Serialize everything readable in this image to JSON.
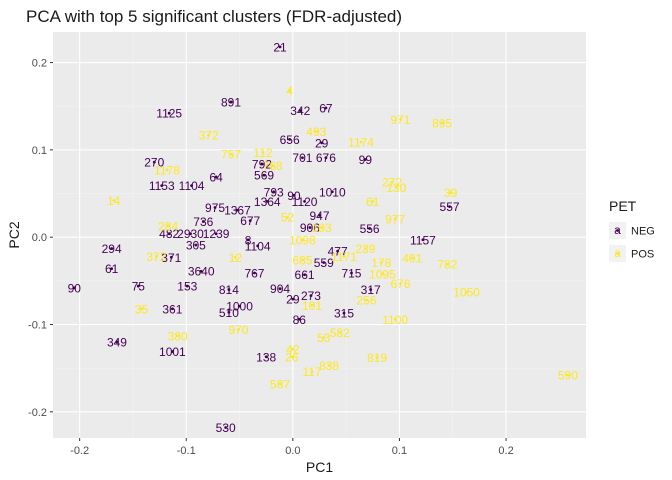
{
  "chart_data": {
    "type": "scatter",
    "title": "PCA with top 5 significant clusters (FDR-adjusted)",
    "xlabel": "PC1",
    "ylabel": "PC2",
    "xlim": [
      -0.225,
      0.275
    ],
    "ylim": [
      -0.23,
      0.235
    ],
    "x_ticks": [
      -0.2,
      -0.1,
      0.0,
      0.1,
      0.2
    ],
    "x_tick_labels": [
      "-0.2",
      "-0.1",
      "0.0",
      "0.1",
      "0.2"
    ],
    "y_ticks": [
      -0.2,
      -0.1,
      0.0,
      0.1,
      0.2
    ],
    "y_tick_labels": [
      "-0.2",
      "-0.1",
      "0.0",
      "0.1",
      "0.2"
    ],
    "grid": true,
    "legend": {
      "title": "PET",
      "placement": "right",
      "entries": [
        {
          "name": "NEG",
          "color": "#440154"
        },
        {
          "name": "POS",
          "color": "#FDE725"
        }
      ],
      "glyph": "a"
    },
    "series": [
      {
        "name": "NEG",
        "color": "#440154",
        "points": [
          {
            "x": -0.012,
            "y": 0.218,
            "label": "21"
          },
          {
            "x": -0.058,
            "y": 0.155,
            "label": "891"
          },
          {
            "x": -0.116,
            "y": 0.142,
            "label": "1125"
          },
          {
            "x": 0.007,
            "y": 0.145,
            "label": "342"
          },
          {
            "x": 0.031,
            "y": 0.148,
            "label": "67"
          },
          {
            "x": -0.003,
            "y": 0.112,
            "label": "656"
          },
          {
            "x": 0.027,
            "y": 0.108,
            "label": "29"
          },
          {
            "x": 0.068,
            "y": 0.089,
            "label": "99"
          },
          {
            "x": -0.13,
            "y": 0.086,
            "label": "270"
          },
          {
            "x": -0.029,
            "y": 0.084,
            "label": "792"
          },
          {
            "x": 0.009,
            "y": 0.091,
            "label": "701"
          },
          {
            "x": 0.031,
            "y": 0.091,
            "label": "676"
          },
          {
            "x": -0.027,
            "y": 0.071,
            "label": "569"
          },
          {
            "x": -0.123,
            "y": 0.059,
            "label": "1153"
          },
          {
            "x": -0.095,
            "y": 0.059,
            "label": "1104"
          },
          {
            "x": -0.072,
            "y": 0.069,
            "label": "64"
          },
          {
            "x": -0.018,
            "y": 0.052,
            "label": "793"
          },
          {
            "x": 0.001,
            "y": 0.048,
            "label": "90"
          },
          {
            "x": 0.037,
            "y": 0.052,
            "label": "1010"
          },
          {
            "x": -0.073,
            "y": 0.034,
            "label": "975"
          },
          {
            "x": -0.052,
            "y": 0.031,
            "label": "1367"
          },
          {
            "x": -0.024,
            "y": 0.041,
            "label": "1364"
          },
          {
            "x": 0.011,
            "y": 0.041,
            "label": "1120"
          },
          {
            "x": 0.025,
            "y": 0.025,
            "label": "947"
          },
          {
            "x": 0.147,
            "y": 0.035,
            "label": "557"
          },
          {
            "x": -0.116,
            "y": 0.004,
            "label": "482"
          },
          {
            "x": -0.096,
            "y": 0.004,
            "label": "2930"
          },
          {
            "x": -0.072,
            "y": 0.004,
            "label": "1239"
          },
          {
            "x": -0.084,
            "y": 0.018,
            "label": "736"
          },
          {
            "x": -0.04,
            "y": 0.019,
            "label": "677"
          },
          {
            "x": 0.016,
            "y": 0.011,
            "label": "906"
          },
          {
            "x": 0.072,
            "y": 0.01,
            "label": "556"
          },
          {
            "x": 0.122,
            "y": -0.003,
            "label": "1157"
          },
          {
            "x": -0.17,
            "y": -0.013,
            "label": "294"
          },
          {
            "x": -0.114,
            "y": -0.023,
            "label": "371"
          },
          {
            "x": -0.091,
            "y": -0.009,
            "label": "305"
          },
          {
            "x": -0.042,
            "y": -0.003,
            "label": "8"
          },
          {
            "x": -0.033,
            "y": -0.01,
            "label": "1104"
          },
          {
            "x": 0.042,
            "y": -0.016,
            "label": "477"
          },
          {
            "x": 0.029,
            "y": -0.029,
            "label": "559"
          },
          {
            "x": -0.17,
            "y": -0.036,
            "label": "61"
          },
          {
            "x": -0.086,
            "y": -0.039,
            "label": "3640"
          },
          {
            "x": -0.036,
            "y": -0.041,
            "label": "767"
          },
          {
            "x": 0.011,
            "y": -0.043,
            "label": "661"
          },
          {
            "x": 0.055,
            "y": -0.041,
            "label": "715"
          },
          {
            "x": -0.205,
            "y": -0.058,
            "label": "90"
          },
          {
            "x": -0.145,
            "y": -0.056,
            "label": "75"
          },
          {
            "x": -0.099,
            "y": -0.056,
            "label": "153"
          },
          {
            "x": -0.06,
            "y": -0.06,
            "label": "814"
          },
          {
            "x": -0.012,
            "y": -0.059,
            "label": "904"
          },
          {
            "x": 0.017,
            "y": -0.067,
            "label": "273"
          },
          {
            "x": 0.073,
            "y": -0.06,
            "label": "317"
          },
          {
            "x": -0.113,
            "y": -0.082,
            "label": "361"
          },
          {
            "x": -0.05,
            "y": -0.079,
            "label": "1000"
          },
          {
            "x": 0.0,
            "y": -0.071,
            "label": "29"
          },
          {
            "x": -0.06,
            "y": -0.086,
            "label": "510"
          },
          {
            "x": 0.006,
            "y": -0.094,
            "label": "86"
          },
          {
            "x": 0.048,
            "y": -0.087,
            "label": "315"
          },
          {
            "x": -0.165,
            "y": -0.12,
            "label": "349"
          },
          {
            "x": -0.113,
            "y": -0.131,
            "label": "1001"
          },
          {
            "x": -0.025,
            "y": -0.137,
            "label": "138"
          },
          {
            "x": -0.063,
            "y": -0.218,
            "label": "530"
          }
        ]
      },
      {
        "name": "POS",
        "color": "#FDE725",
        "points": [
          {
            "x": -0.003,
            "y": 0.168,
            "label": "4"
          },
          {
            "x": -0.079,
            "y": 0.117,
            "label": "372"
          },
          {
            "x": 0.101,
            "y": 0.135,
            "label": "971"
          },
          {
            "x": 0.14,
            "y": 0.131,
            "label": "895"
          },
          {
            "x": 0.022,
            "y": 0.121,
            "label": "493"
          },
          {
            "x": 0.064,
            "y": 0.109,
            "label": "1174"
          },
          {
            "x": -0.058,
            "y": 0.095,
            "label": "757"
          },
          {
            "x": -0.028,
            "y": 0.097,
            "label": "112"
          },
          {
            "x": -0.019,
            "y": 0.082,
            "label": "768"
          },
          {
            "x": 0.093,
            "y": 0.063,
            "label": "272"
          },
          {
            "x": -0.118,
            "y": 0.077,
            "label": "1178"
          },
          {
            "x": 0.148,
            "y": 0.051,
            "label": "39"
          },
          {
            "x": -0.168,
            "y": 0.042,
            "label": "14"
          },
          {
            "x": 0.097,
            "y": 0.057,
            "label": "130"
          },
          {
            "x": 0.075,
            "y": 0.041,
            "label": "61"
          },
          {
            "x": -0.117,
            "y": 0.013,
            "label": "284"
          },
          {
            "x": 0.096,
            "y": 0.021,
            "label": "977"
          },
          {
            "x": -0.005,
            "y": 0.023,
            "label": "52"
          },
          {
            "x": 0.027,
            "y": 0.011,
            "label": "103"
          },
          {
            "x": 0.068,
            "y": -0.013,
            "label": "239"
          },
          {
            "x": -0.128,
            "y": -0.022,
            "label": "372"
          },
          {
            "x": 0.009,
            "y": -0.003,
            "label": "1098"
          },
          {
            "x": 0.048,
            "y": -0.022,
            "label": "1171"
          },
          {
            "x": 0.083,
            "y": -0.029,
            "label": "178"
          },
          {
            "x": 0.112,
            "y": -0.024,
            "label": "401"
          },
          {
            "x": -0.054,
            "y": -0.023,
            "label": "12"
          },
          {
            "x": 0.145,
            "y": -0.031,
            "label": "782"
          },
          {
            "x": 0.009,
            "y": -0.026,
            "label": "685"
          },
          {
            "x": 0.101,
            "y": -0.053,
            "label": "676"
          },
          {
            "x": 0.084,
            "y": -0.042,
            "label": "1095"
          },
          {
            "x": 0.163,
            "y": -0.063,
            "label": "1050"
          },
          {
            "x": 0.069,
            "y": -0.072,
            "label": "256"
          },
          {
            "x": 0.018,
            "y": -0.078,
            "label": "101"
          },
          {
            "x": -0.142,
            "y": -0.082,
            "label": "35"
          },
          {
            "x": 0.096,
            "y": -0.094,
            "label": "1100"
          },
          {
            "x": -0.108,
            "y": -0.113,
            "label": "380"
          },
          {
            "x": -0.051,
            "y": -0.106,
            "label": "970"
          },
          {
            "x": 0.044,
            "y": -0.109,
            "label": "582"
          },
          {
            "x": 0.029,
            "y": -0.115,
            "label": "53"
          },
          {
            "x": 0.0,
            "y": -0.128,
            "label": "42"
          },
          {
            "x": -0.001,
            "y": -0.137,
            "label": "26"
          },
          {
            "x": 0.034,
            "y": -0.147,
            "label": "838"
          },
          {
            "x": 0.018,
            "y": -0.154,
            "label": "117"
          },
          {
            "x": 0.079,
            "y": -0.138,
            "label": "819"
          },
          {
            "x": -0.012,
            "y": -0.168,
            "label": "587"
          },
          {
            "x": 0.258,
            "y": -0.158,
            "label": "590"
          }
        ]
      }
    ]
  }
}
